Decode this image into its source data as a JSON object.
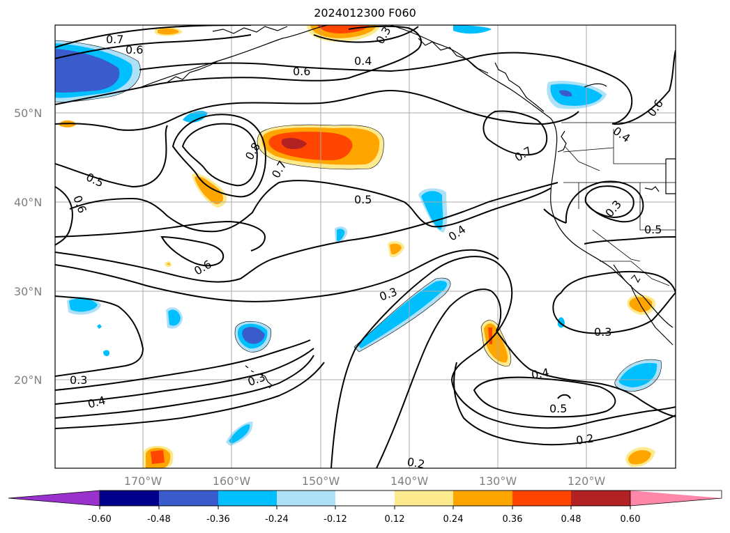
{
  "title": "2024012300 F060",
  "lat_labels": [
    "50°N",
    "40°N",
    "30°N",
    "20°N"
  ],
  "lon_labels": [
    "170°W",
    "160°W",
    "150°W",
    "140°W",
    "130°W",
    "120°W"
  ],
  "contour_labels": [
    "0.7",
    "0.6",
    "0.3",
    "0.4",
    "0.6",
    "0.6",
    "0.8",
    "0.7",
    "0.7",
    "0.4",
    "0.5",
    "0.6",
    "0.5",
    "0.3",
    "0.5",
    "0.4",
    "0.6",
    "0.3",
    "0.3",
    "0.3",
    "0.3",
    "0.4",
    "0.4",
    "0.5",
    "0.2",
    "0.2"
  ],
  "colorbar": {
    "ticks": [
      "-0.60",
      "-0.48",
      "-0.36",
      "-0.24",
      "-0.12",
      "0.12",
      "0.24",
      "0.36",
      "0.48",
      "0.60"
    ],
    "colors": {
      "lt_-060": "#9932cc",
      "-060_-048": "#00008b",
      "-048_-036": "#3a5bcc",
      "-036_-024": "#00bfff",
      "-024_-012": "#aee0f8",
      "-012_012": "#ffffff",
      "012_024": "#fde98e",
      "024_036": "#ffa500",
      "036_048": "#ff4500",
      "048_060": "#b22222",
      "gt_060": "#ff88aa"
    }
  }
}
